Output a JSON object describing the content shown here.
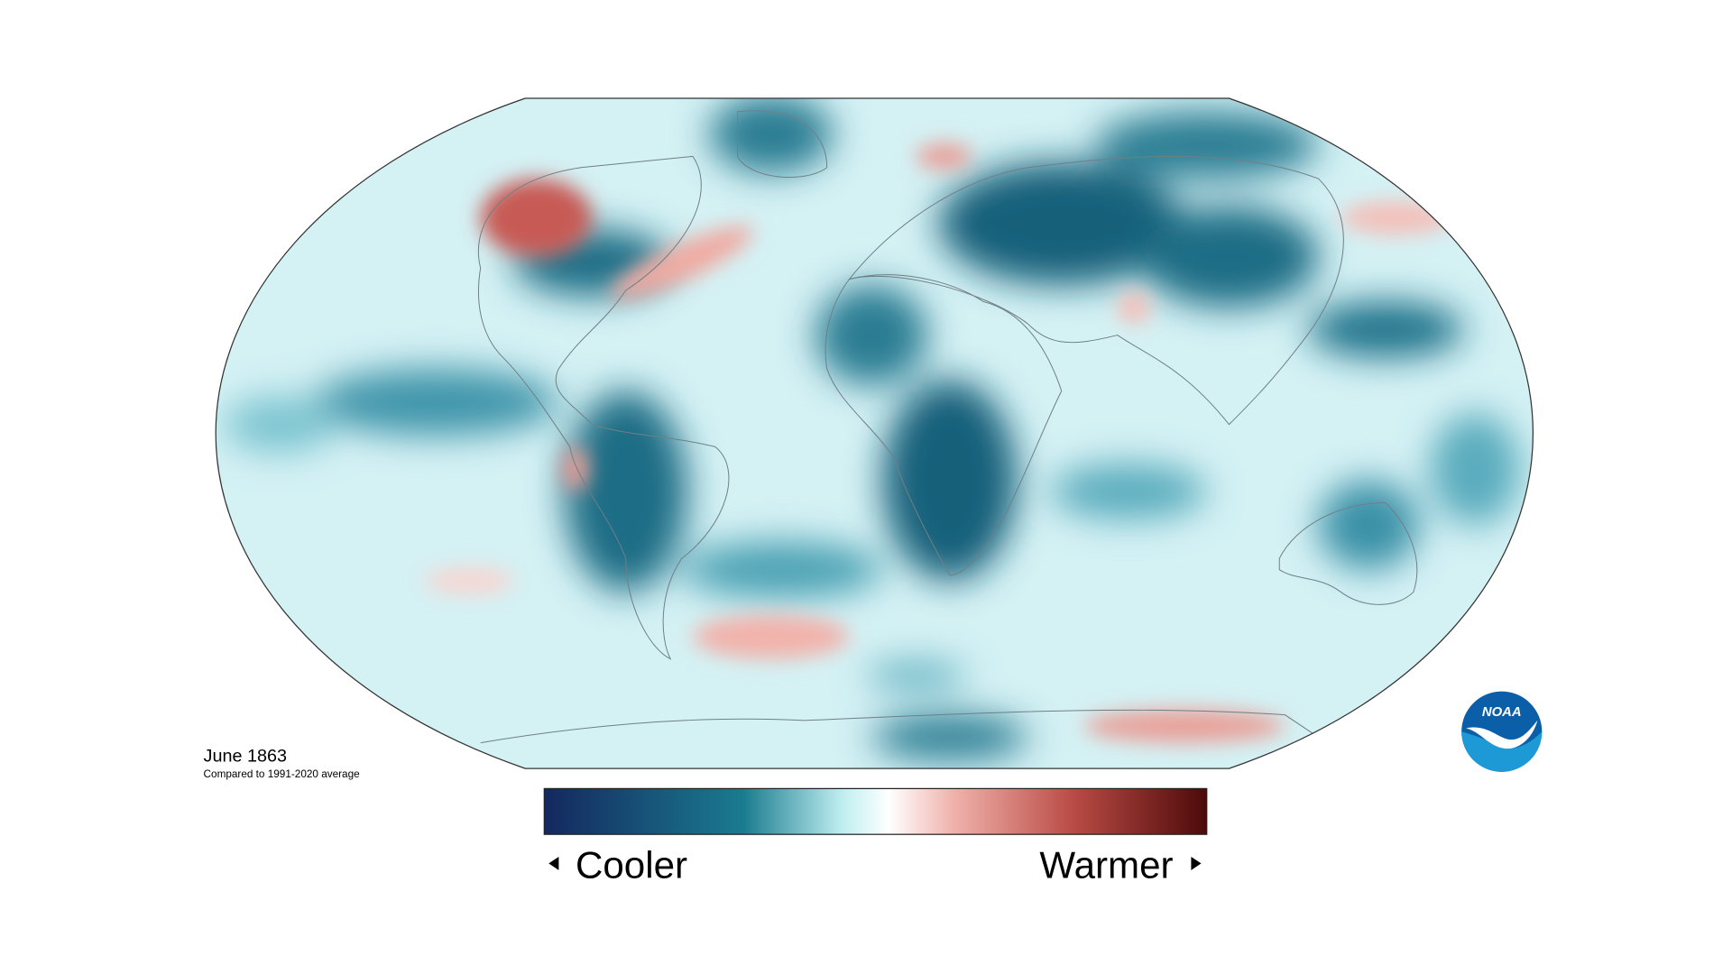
{
  "caption": {
    "title": "June 1863",
    "subtitle": "Compared to 1991-2020 average"
  },
  "legend": {
    "low": "Cooler",
    "high": "Warmer"
  },
  "logo": {
    "text": "NOAA"
  }
}
